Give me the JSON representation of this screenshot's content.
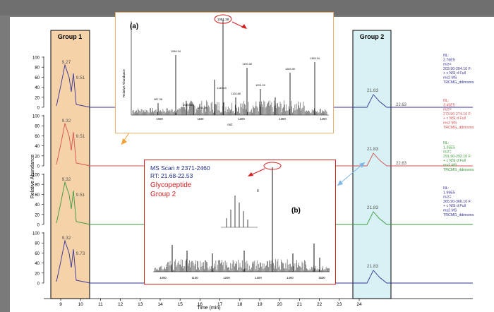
{
  "top_caption": "",
  "groups": {
    "group1": "Group 1",
    "group2": "Group 2"
  },
  "y_axis_label": "Relative Abundance",
  "x_axis_label": "Time (min)",
  "x_ticks": [
    "9",
    "10",
    "11",
    "12",
    "13",
    "14",
    "15",
    "16",
    "17",
    "18",
    "19",
    "20",
    "21",
    "22",
    "23",
    "24"
  ],
  "y_ticks": [
    "100",
    "80",
    "60",
    "40",
    "20",
    "0"
  ],
  "traces": [
    {
      "peak_labels": [
        "9.27",
        "9.51"
      ],
      "g2_peak": "21.83",
      "g2_end": "22.63",
      "info": [
        "NL:",
        "2.76E5",
        "m/z=",
        "203.90-204.10 F:",
        "+ c NSI d Full",
        "ms2 MS",
        "TRCMG_ddimsms"
      ],
      "color": "#333399"
    },
    {
      "peak_labels": [
        "9.32",
        "9.51"
      ],
      "g2_peak": "21.83",
      "g2_end": "22.63",
      "info": [
        "NL:",
        "3.45E5",
        "m/z=",
        "273.90-274.10 F:",
        "+ c NSI d Full",
        "ms2 MS",
        "TRCMG_ddimsms"
      ],
      "color": "#d95050"
    },
    {
      "peak_labels": [
        "9.32",
        "9.51"
      ],
      "g2_peak": "21.83",
      "g2_end": "",
      "info": [
        "NL:",
        "1.35E5",
        "m/z=",
        "291.90-292.10 F:",
        "+ c NSI d Full",
        "ms2 MS",
        "TRCMG_ddimsms"
      ],
      "color": "#3a9a3a"
    },
    {
      "peak_labels": [
        "9.32",
        "9.73"
      ],
      "g2_peak": "21.83",
      "g2_end": "",
      "info": [
        "NL:",
        "1.99E5",
        "m/z=",
        "365.90-366.10 F:",
        "+ c NSI d Full",
        "ms2 MS",
        "TRCMG_ddimsms"
      ],
      "color": "#333399"
    }
  ],
  "inset_a": {
    "label": "(a)",
    "y_label": "Relative Abundance",
    "x_label": "m/z",
    "top_peak": "1081.38",
    "peaks": [
      "1084.34",
      "1199.38",
      "1283.35",
      "1365.34",
      "1140.43",
      "1221.29",
      "987.38",
      "1015.50",
      "1064.29",
      "1120.88"
    ],
    "x_ticks": [
      "1000",
      "1100",
      "1200",
      "1300",
      "1400"
    ]
  },
  "inset_b": {
    "label": "(b)",
    "lines": [
      "MS Scan # 2371-2460",
      "RT: 21.68-22.53"
    ],
    "red_lines": [
      "Glycopeptide",
      "Group 2"
    ],
    "x_ticks": [
      "1000",
      "1100",
      "1200",
      "1300",
      "1400",
      "1500"
    ],
    "charge": "II"
  },
  "colors": {
    "group1_fill": "#f6d2a8",
    "group2_fill": "#d8f1f4",
    "orange": "#f0a030",
    "red": "#d31f1f",
    "lightblue": "#7fb6e6",
    "dark": "#222222"
  }
}
